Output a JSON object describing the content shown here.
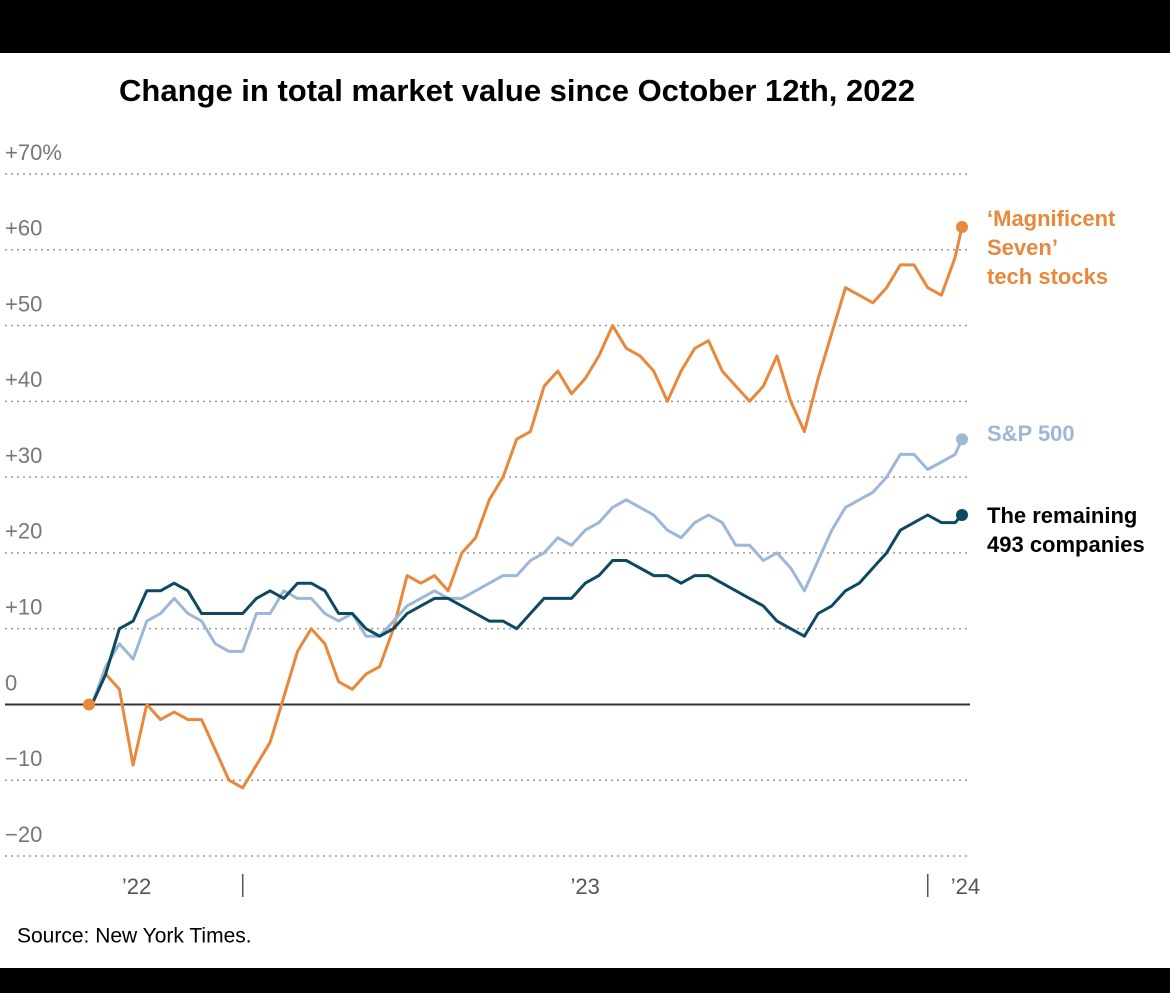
{
  "chart_data": {
    "type": "line",
    "title": "Change in total market value since October 12th, 2022",
    "source": "Source: New York Times.",
    "x": [
      2022.78,
      2022.8,
      2022.82,
      2022.84,
      2022.86,
      2022.88,
      2022.9,
      2022.92,
      2022.94,
      2022.96,
      2022.98,
      2023.0,
      2023.02,
      2023.04,
      2023.06,
      2023.08,
      2023.1,
      2023.12,
      2023.14,
      2023.16,
      2023.18,
      2023.2,
      2023.22,
      2023.24,
      2023.26,
      2023.28,
      2023.3,
      2023.32,
      2023.34,
      2023.36,
      2023.38,
      2023.4,
      2023.42,
      2023.44,
      2023.46,
      2023.48,
      2023.5,
      2023.52,
      2023.54,
      2023.56,
      2023.58,
      2023.6,
      2023.62,
      2023.64,
      2023.66,
      2023.68,
      2023.7,
      2023.72,
      2023.74,
      2023.76,
      2023.78,
      2023.8,
      2023.82,
      2023.84,
      2023.86,
      2023.88,
      2023.9,
      2023.92,
      2023.94,
      2023.96,
      2023.98,
      2024.0,
      2024.02,
      2024.04,
      2024.05
    ],
    "xlim": [
      2022.775,
      2024.05
    ],
    "xticks": [
      2023,
      2024
    ],
    "xlabels": [
      {
        "value": 2022.845,
        "label": "’22"
      },
      {
        "value": 2023.5,
        "label": "’23"
      },
      {
        "value": 2024.055,
        "label": "’24"
      }
    ],
    "ylim": [
      -20,
      70
    ],
    "yticks": [
      {
        "value": 70,
        "label": "+70%"
      },
      {
        "value": 60,
        "label": "+60"
      },
      {
        "value": 50,
        "label": "+50"
      },
      {
        "value": 40,
        "label": "+40"
      },
      {
        "value": 30,
        "label": "+30"
      },
      {
        "value": 20,
        "label": "+20"
      },
      {
        "value": 10,
        "label": "+10"
      },
      0,
      {
        "value": -10,
        "label": "−10"
      },
      {
        "value": -20,
        "label": "−20"
      }
    ],
    "grid": true,
    "series": [
      {
        "name": "‘Magnificent\nSeven’\ntech stocks",
        "color": "#e8883a",
        "values": [
          0,
          4,
          2,
          -8,
          0,
          -2,
          -1,
          -2,
          -2,
          -6,
          -10,
          -11,
          -8,
          -5,
          1,
          7,
          10,
          8,
          3,
          2,
          4,
          5,
          10,
          17,
          16,
          17,
          15,
          20,
          22,
          27,
          30,
          35,
          36,
          42,
          44,
          41,
          43,
          46,
          50,
          47,
          46,
          44,
          40,
          44,
          47,
          48,
          44,
          42,
          40,
          42,
          46,
          40,
          36,
          43,
          49,
          55,
          54,
          53,
          55,
          58,
          58,
          55,
          54,
          59,
          63
        ]
      },
      {
        "name": "S&P 500",
        "color": "#9db8d6",
        "values": [
          0,
          5,
          8,
          6,
          11,
          12,
          14,
          12,
          11,
          8,
          7,
          7,
          12,
          12,
          15,
          14,
          14,
          12,
          11,
          12,
          9,
          9,
          11,
          13,
          14,
          15,
          14,
          14,
          15,
          16,
          17,
          17,
          19,
          20,
          22,
          21,
          23,
          24,
          26,
          27,
          26,
          25,
          23,
          22,
          24,
          25,
          24,
          21,
          21,
          19,
          20,
          18,
          15,
          19,
          23,
          26,
          27,
          28,
          30,
          33,
          33,
          31,
          32,
          33,
          35
        ]
      },
      {
        "name": "The remaining\n493 companies",
        "color": "#0d4a62",
        "values": [
          0,
          4,
          10,
          11,
          15,
          15,
          16,
          15,
          12,
          12,
          12,
          12,
          14,
          15,
          14,
          16,
          16,
          15,
          12,
          12,
          10,
          9,
          10,
          12,
          13,
          14,
          14,
          13,
          12,
          11,
          11,
          10,
          12,
          14,
          14,
          14,
          16,
          17,
          19,
          19,
          18,
          17,
          17,
          16,
          17,
          17,
          16,
          15,
          14,
          13,
          11,
          10,
          9,
          12,
          13,
          15,
          16,
          18,
          20,
          23,
          24,
          25,
          24,
          24,
          25
        ]
      }
    ]
  }
}
